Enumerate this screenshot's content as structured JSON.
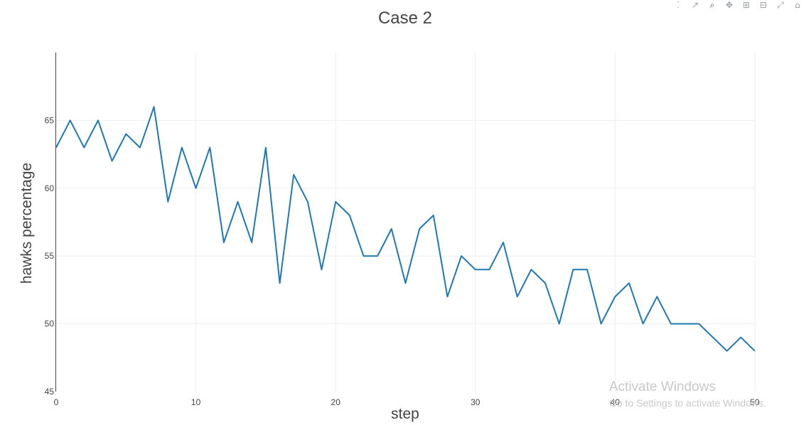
{
  "modebar": {
    "buttons": [
      {
        "name": "compare-data-icon",
        "glyph": "⁚"
      },
      {
        "name": "closest-data-icon",
        "glyph": "↗"
      },
      {
        "name": "zoom-icon",
        "glyph": "⌕"
      },
      {
        "name": "pan-icon",
        "glyph": "✥"
      },
      {
        "name": "zoom-in-icon",
        "glyph": "⊞"
      },
      {
        "name": "zoom-out-icon",
        "glyph": "⊟"
      },
      {
        "name": "autoscale-icon",
        "glyph": "⤢"
      },
      {
        "name": "reset-axes-icon",
        "glyph": "⌂"
      }
    ]
  },
  "watermark": {
    "title": "Activate Windows",
    "subtitle": "Go to Settings to activate Windows."
  },
  "chart_data": {
    "type": "line",
    "title": "Case 2",
    "xlabel": "step",
    "ylabel": "hawks percentage",
    "xlim": [
      0,
      50
    ],
    "ylim": [
      45,
      70
    ],
    "xticks": [
      0,
      10,
      20,
      30,
      40,
      50
    ],
    "yticks": [
      45,
      50,
      55,
      60,
      65
    ],
    "grid": true,
    "line_color": "#1f77b4",
    "series": [
      {
        "x": [
          0,
          1,
          2,
          3,
          4,
          5,
          6,
          7,
          8,
          9,
          10,
          11,
          12,
          13,
          14,
          15,
          16,
          17,
          18,
          19,
          20,
          21,
          22,
          23,
          24,
          25,
          26,
          27,
          28,
          29,
          30,
          31,
          32,
          33,
          34,
          35,
          36,
          37,
          38,
          39,
          40,
          41,
          42,
          43,
          44,
          45,
          46,
          47,
          48,
          49,
          50
        ],
        "y": [
          63,
          65,
          63,
          65,
          62,
          64,
          63,
          66,
          59,
          63,
          60,
          63,
          56,
          59,
          56,
          63,
          53,
          61,
          59,
          54,
          59,
          58,
          55,
          55,
          57,
          53,
          57,
          58,
          52,
          55,
          54,
          54,
          56,
          52,
          54,
          53,
          50,
          54,
          54,
          50,
          52,
          53,
          50,
          52,
          50,
          50,
          50,
          49,
          48,
          49,
          48
        ]
      }
    ]
  }
}
